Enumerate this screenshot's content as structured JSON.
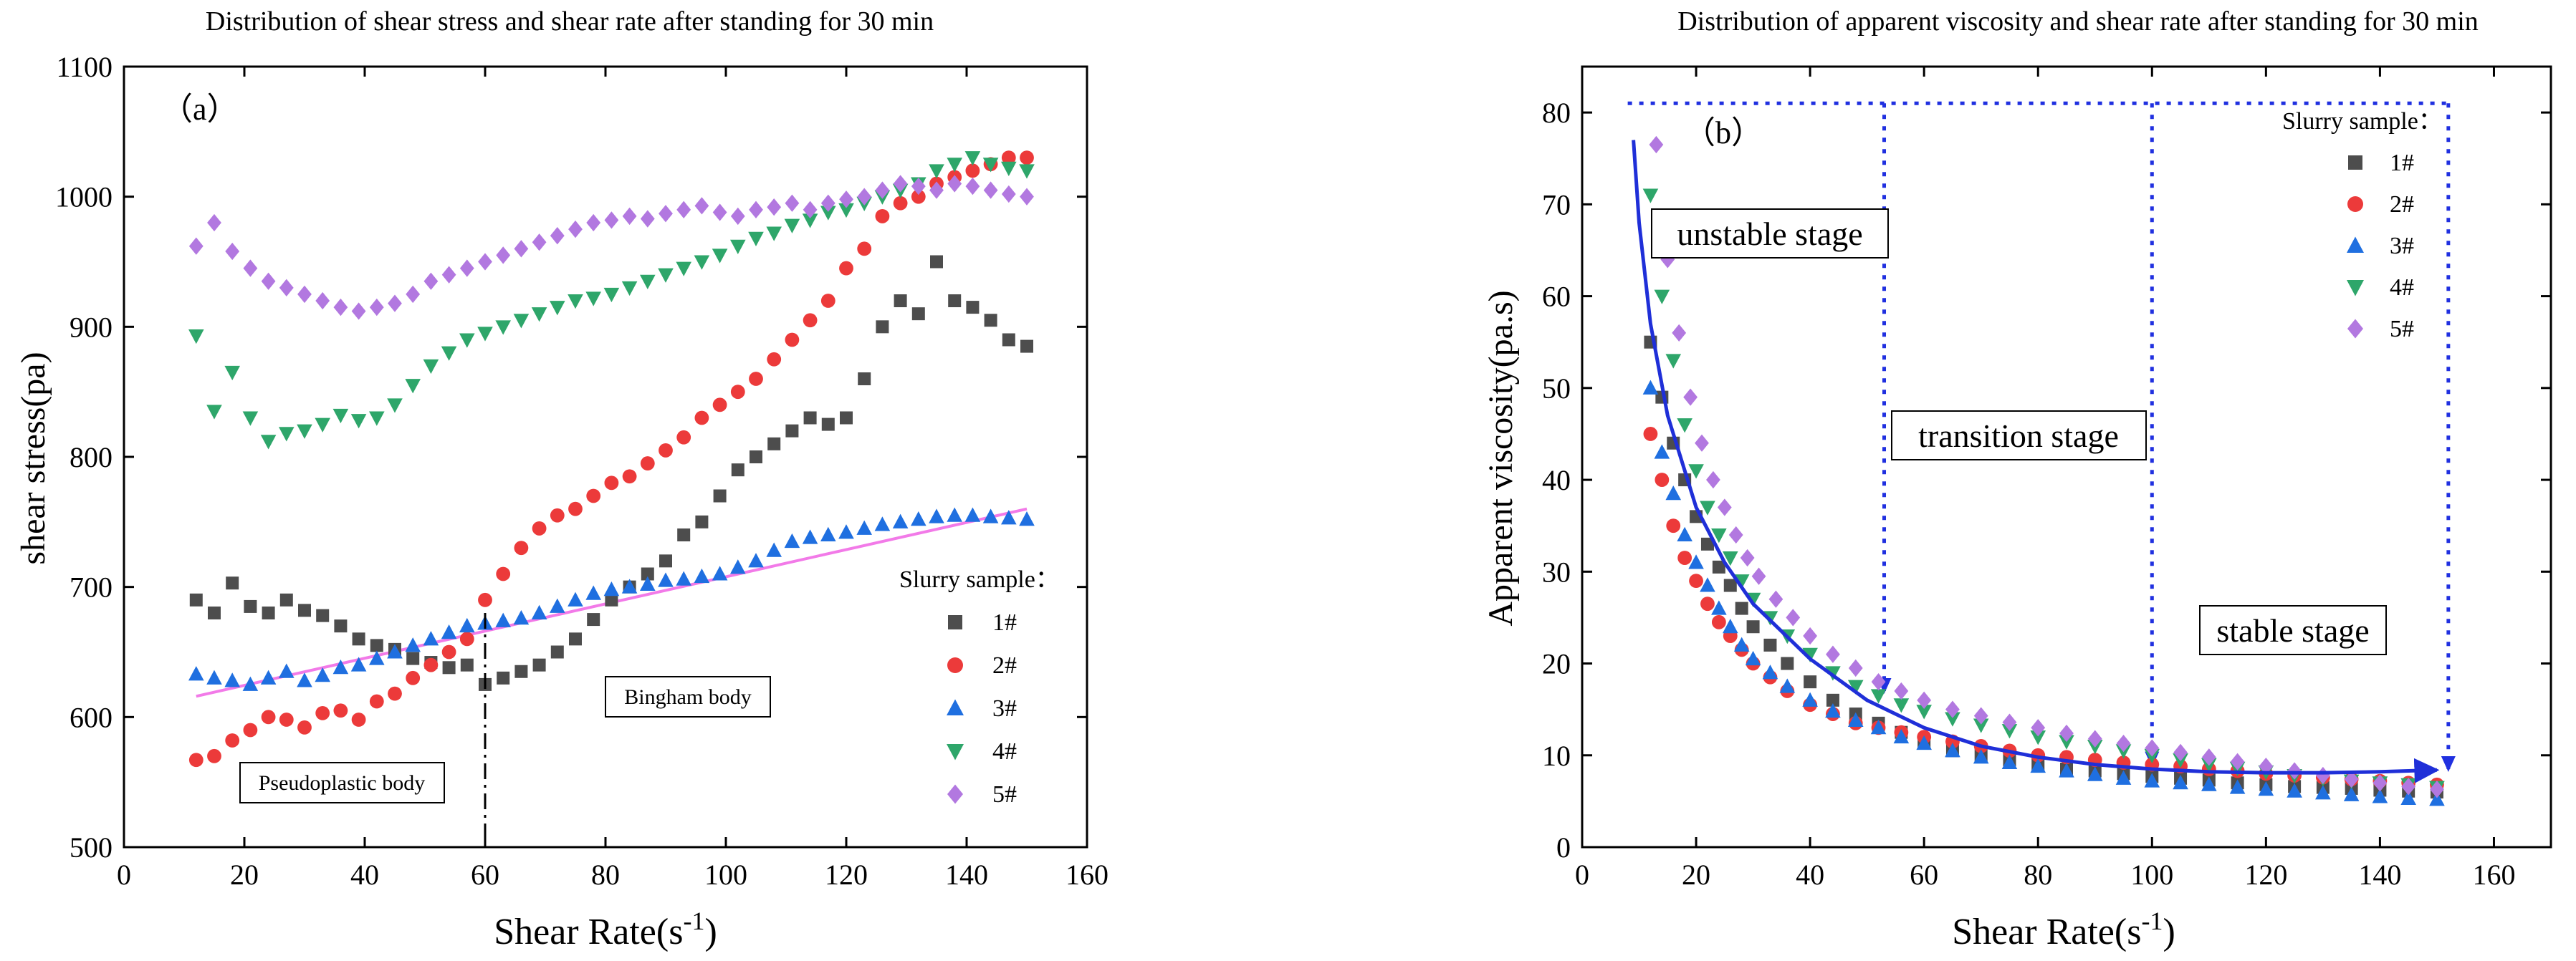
{
  "colors": {
    "s1": "#4d4d4d",
    "s2": "#ec3a3a",
    "s3": "#1f6fe0",
    "s4": "#2ea66a",
    "s5": "#b278e0",
    "fitline": "#f27ae8",
    "curve": "#1f2fd8",
    "dotted": "#2030e0"
  },
  "chart_data": [
    {
      "type": "scatter",
      "title": "Distribution of shear stress and shear rate after standing for 30 min",
      "panel_tag": "（a）",
      "xlabel_main": "Shear Rate(s",
      "xlabel_sup": "-1",
      "xlabel_end": ")",
      "ylabel": "shear stress(pa)",
      "xlim": [
        0,
        160
      ],
      "ylim": [
        500,
        1100
      ],
      "xticks": [
        "0",
        "20",
        "40",
        "60",
        "80",
        "100",
        "120",
        "140",
        "160"
      ],
      "yticks": [
        "500",
        "600",
        "700",
        "800",
        "900",
        "1000",
        "1100"
      ],
      "legend": {
        "title": "Slurry sample：",
        "entries": [
          "1#",
          "2#",
          "3#",
          "4#",
          "5#"
        ],
        "placement": "right"
      },
      "annotations": {
        "pseudoplastic": "Pseudoplastic body",
        "bingham": "Bingham body",
        "vline_x": 60
      },
      "fit_line": {
        "x": [
          12,
          150
        ],
        "y": [
          616,
          760
        ]
      },
      "series": [
        {
          "name": "1#",
          "marker": "square",
          "x": [
            12,
            15,
            18,
            21,
            24,
            27,
            30,
            33,
            36,
            39,
            42,
            45,
            48,
            51,
            54,
            57,
            60,
            63,
            66,
            69,
            72,
            75,
            78,
            81,
            84,
            87,
            90,
            93,
            96,
            99,
            102,
            105,
            108,
            111,
            114,
            117,
            120,
            123,
            126,
            129,
            132,
            135,
            138,
            141,
            144,
            147,
            150
          ],
          "y": [
            690,
            680,
            703,
            685,
            680,
            690,
            682,
            678,
            670,
            660,
            655,
            652,
            645,
            642,
            638,
            640,
            625,
            630,
            635,
            640,
            650,
            660,
            675,
            690,
            700,
            710,
            720,
            740,
            750,
            770,
            790,
            800,
            810,
            820,
            830,
            825,
            830,
            860,
            900,
            920,
            910,
            950,
            920,
            915,
            905,
            890,
            885
          ]
        },
        {
          "name": "2#",
          "marker": "circle",
          "x": [
            12,
            15,
            18,
            21,
            24,
            27,
            30,
            33,
            36,
            39,
            42,
            45,
            48,
            51,
            54,
            57,
            60,
            63,
            66,
            69,
            72,
            75,
            78,
            81,
            84,
            87,
            90,
            93,
            96,
            99,
            102,
            105,
            108,
            111,
            114,
            117,
            120,
            123,
            126,
            129,
            132,
            135,
            138,
            141,
            144,
            147,
            150
          ],
          "y": [
            567,
            570,
            582,
            590,
            600,
            598,
            592,
            603,
            605,
            598,
            612,
            618,
            630,
            640,
            650,
            660,
            690,
            710,
            730,
            745,
            755,
            760,
            770,
            780,
            785,
            795,
            805,
            815,
            830,
            840,
            850,
            860,
            875,
            890,
            905,
            920,
            945,
            960,
            985,
            995,
            1000,
            1010,
            1015,
            1020,
            1025,
            1030,
            1030
          ]
        },
        {
          "name": "3#",
          "marker": "triangle-up",
          "x": [
            12,
            15,
            18,
            21,
            24,
            27,
            30,
            33,
            36,
            39,
            42,
            45,
            48,
            51,
            54,
            57,
            60,
            63,
            66,
            69,
            72,
            75,
            78,
            81,
            84,
            87,
            90,
            93,
            96,
            99,
            102,
            105,
            108,
            111,
            114,
            117,
            120,
            123,
            126,
            129,
            132,
            135,
            138,
            141,
            144,
            147,
            150
          ],
          "y": [
            633,
            630,
            628,
            625,
            630,
            635,
            628,
            632,
            638,
            640,
            645,
            650,
            655,
            660,
            665,
            670,
            672,
            674,
            676,
            680,
            685,
            690,
            695,
            698,
            700,
            702,
            705,
            706,
            708,
            710,
            715,
            720,
            728,
            735,
            738,
            740,
            742,
            745,
            748,
            750,
            752,
            754,
            755,
            755,
            754,
            753,
            752
          ]
        },
        {
          "name": "4#",
          "marker": "triangle-down",
          "x": [
            12,
            15,
            18,
            21,
            24,
            27,
            30,
            33,
            36,
            39,
            42,
            45,
            48,
            51,
            54,
            57,
            60,
            63,
            66,
            69,
            72,
            75,
            78,
            81,
            84,
            87,
            90,
            93,
            96,
            99,
            102,
            105,
            108,
            111,
            114,
            117,
            120,
            123,
            126,
            129,
            132,
            135,
            138,
            141,
            144,
            147,
            150
          ],
          "y": [
            893,
            835,
            865,
            830,
            812,
            818,
            820,
            825,
            832,
            828,
            830,
            840,
            855,
            870,
            880,
            890,
            895,
            900,
            905,
            910,
            915,
            920,
            922,
            925,
            930,
            935,
            940,
            945,
            950,
            955,
            962,
            968,
            972,
            978,
            982,
            988,
            990,
            995,
            1000,
            1005,
            1010,
            1020,
            1025,
            1030,
            1025,
            1022,
            1020
          ]
        },
        {
          "name": "5#",
          "marker": "diamond",
          "x": [
            12,
            15,
            18,
            21,
            24,
            27,
            30,
            33,
            36,
            39,
            42,
            45,
            48,
            51,
            54,
            57,
            60,
            63,
            66,
            69,
            72,
            75,
            78,
            81,
            84,
            87,
            90,
            93,
            96,
            99,
            102,
            105,
            108,
            111,
            114,
            117,
            120,
            123,
            126,
            129,
            132,
            135,
            138,
            141,
            144,
            147,
            150
          ],
          "y": [
            962,
            980,
            958,
            945,
            935,
            930,
            925,
            920,
            915,
            912,
            915,
            918,
            925,
            935,
            940,
            945,
            950,
            955,
            960,
            965,
            970,
            975,
            980,
            982,
            985,
            983,
            987,
            990,
            993,
            988,
            985,
            990,
            992,
            995,
            990,
            995,
            998,
            1000,
            1005,
            1010,
            1008,
            1005,
            1010,
            1008,
            1005,
            1002,
            1000
          ]
        }
      ]
    },
    {
      "type": "scatter",
      "title": "Distribution of apparent viscosity and shear rate after standing for 30 min",
      "panel_tag": "（b）",
      "xlabel_main": "Shear Rate(s",
      "xlabel_sup": "-1",
      "xlabel_end": ")",
      "ylabel": "Apparent viscosity(pa.s)",
      "xlim": [
        0,
        170
      ],
      "ylim": [
        0,
        85
      ],
      "xticks": [
        "0",
        "20",
        "40",
        "60",
        "80",
        "100",
        "120",
        "140",
        "160"
      ],
      "yticks": [
        "0",
        "10",
        "20",
        "30",
        "40",
        "50",
        "60",
        "70",
        "80"
      ],
      "legend": {
        "title": "Slurry sample：",
        "entries": [
          "1#",
          "2#",
          "3#",
          "4#",
          "5#"
        ],
        "placement": "top-right"
      },
      "stages": [
        "unstable stage",
        "transition stage",
        "stable stage"
      ],
      "stage_bounds_x": [
        53,
        100,
        152
      ],
      "stage_top_y": 81,
      "trend_curve": {
        "x": [
          9,
          10,
          12,
          15,
          20,
          25,
          30,
          40,
          50,
          60,
          70,
          80,
          90,
          100,
          110,
          120,
          130,
          140,
          150
        ],
        "y": [
          77,
          68,
          57,
          47,
          37,
          31,
          26.5,
          20.5,
          16,
          13,
          11,
          9.8,
          9,
          8.5,
          8.2,
          8.1,
          8.1,
          8.2,
          8.4
        ]
      },
      "series": [
        {
          "name": "1#",
          "marker": "square",
          "x": [
            12,
            14,
            16,
            18,
            20,
            22,
            24,
            26,
            28,
            30,
            33,
            36,
            40,
            44,
            48,
            52,
            56,
            60,
            65,
            70,
            75,
            80,
            85,
            90,
            95,
            100,
            105,
            110,
            115,
            120,
            125,
            130,
            135,
            140,
            145,
            150
          ],
          "y": [
            55,
            49,
            44,
            40,
            36,
            33,
            30.5,
            28.5,
            26,
            24,
            22,
            20,
            18,
            16,
            14.5,
            13.5,
            12.5,
            11.5,
            10.5,
            10,
            9.5,
            9,
            8.5,
            8.3,
            8,
            7.7,
            7.5,
            7.3,
            7,
            6.8,
            6.6,
            6.5,
            6.4,
            6.2,
            6.1,
            6
          ]
        },
        {
          "name": "2#",
          "marker": "circle",
          "x": [
            12,
            14,
            16,
            18,
            20,
            22,
            24,
            26,
            28,
            30,
            33,
            36,
            40,
            44,
            48,
            52,
            56,
            60,
            65,
            70,
            75,
            80,
            85,
            90,
            95,
            100,
            105,
            110,
            115,
            120,
            125,
            130,
            135,
            140,
            145,
            150
          ],
          "y": [
            45,
            40,
            35,
            31.5,
            29,
            26.5,
            24.5,
            23,
            21.5,
            20,
            18.5,
            17,
            15.5,
            14.5,
            13.5,
            13,
            12.5,
            12,
            11.5,
            11,
            10.5,
            10,
            9.8,
            9.5,
            9.2,
            9,
            8.8,
            8.5,
            8.3,
            8,
            7.8,
            7.6,
            7.4,
            7.2,
            7,
            6.8
          ]
        },
        {
          "name": "3#",
          "marker": "triangle-up",
          "x": [
            12,
            14,
            16,
            18,
            20,
            22,
            24,
            26,
            28,
            30,
            33,
            36,
            40,
            44,
            48,
            52,
            56,
            60,
            65,
            70,
            75,
            80,
            85,
            90,
            95,
            100,
            105,
            110,
            115,
            120,
            125,
            130,
            135,
            140,
            145,
            150
          ],
          "y": [
            50,
            43,
            38.5,
            34,
            31,
            28.5,
            26,
            24,
            22,
            20.5,
            19,
            17.5,
            16,
            14.8,
            13.8,
            13,
            12,
            11.3,
            10.5,
            9.8,
            9.2,
            8.8,
            8.3,
            7.9,
            7.5,
            7.2,
            7,
            6.8,
            6.5,
            6.3,
            6.1,
            5.9,
            5.7,
            5.5,
            5.3,
            5.2
          ]
        },
        {
          "name": "4#",
          "marker": "triangle-down",
          "x": [
            12,
            14,
            16,
            18,
            20,
            22,
            24,
            26,
            28,
            30,
            33,
            36,
            40,
            44,
            48,
            52,
            56,
            60,
            65,
            70,
            75,
            80,
            85,
            90,
            95,
            100,
            105,
            110,
            115,
            120,
            125,
            130,
            135,
            140,
            145,
            150
          ],
          "y": [
            71,
            60,
            53,
            46,
            41,
            37,
            34,
            31.5,
            29,
            27,
            25,
            23,
            21,
            19,
            17.5,
            16.5,
            15.5,
            14.8,
            14,
            13.3,
            12.7,
            12,
            11.5,
            11,
            10.5,
            10,
            9.5,
            9,
            8.6,
            8.2,
            7.8,
            7.5,
            7.2,
            7,
            6.8,
            6.5
          ]
        },
        {
          "name": "5#",
          "marker": "diamond",
          "x": [
            13,
            15,
            17,
            19,
            21,
            23,
            25,
            27,
            29,
            31,
            34,
            37,
            40,
            44,
            48,
            52,
            56,
            60,
            65,
            70,
            75,
            80,
            85,
            90,
            95,
            100,
            105,
            110,
            115,
            120,
            125,
            130,
            135,
            140,
            145,
            150
          ],
          "y": [
            76.5,
            64,
            56,
            49,
            44,
            40,
            37,
            34,
            31.5,
            29.5,
            27,
            25,
            23,
            21,
            19.5,
            18,
            17,
            16,
            15,
            14.3,
            13.6,
            13,
            12.4,
            11.8,
            11.3,
            10.8,
            10.3,
            9.8,
            9.3,
            8.8,
            8.3,
            7.8,
            7.4,
            7,
            6.6,
            6.3
          ]
        }
      ]
    }
  ]
}
